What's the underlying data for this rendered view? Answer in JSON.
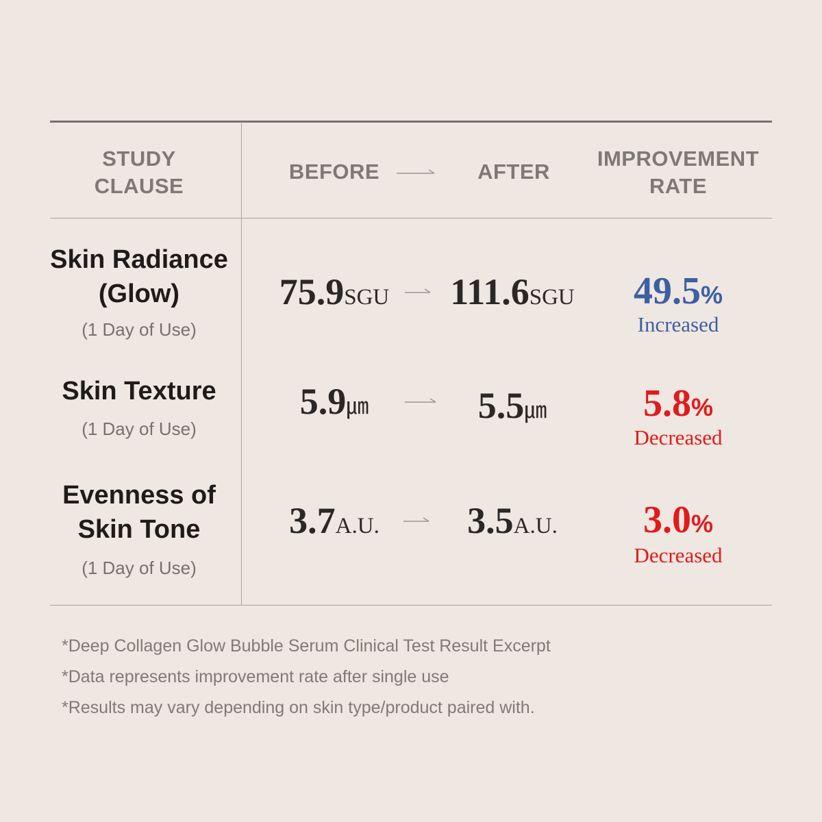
{
  "colors": {
    "background": "#efe7e1",
    "header_text": "#7d7975",
    "increase": "#3d5fa3",
    "decrease": "#e01b1b"
  },
  "header": {
    "study_clause_line1": "STUDY",
    "study_clause_line2": "CLAUSE",
    "before": "BEFORE",
    "after": "AFTER",
    "rate_line1": "IMPROVEMENT",
    "rate_line2": "RATE",
    "arrow_icon": "right-arrow-icon"
  },
  "rows": [
    {
      "clause_line1": "Skin Radiance",
      "clause_line2": "(Glow)",
      "period": "(1 Day of Use)",
      "before_value": "75.9",
      "before_unit": "SGU",
      "after_value": "111.6",
      "after_unit": "SGU",
      "rate_value": "49.5",
      "rate_unit": "%",
      "rate_label": "Increased"
    },
    {
      "clause_line1": "Skin Texture",
      "period": "(1 Day of Use)",
      "before_value": "5.9",
      "before_unit": "㎛",
      "after_value": "5.5",
      "after_unit": "㎛",
      "rate_value": "5.8",
      "rate_unit": "%",
      "rate_label": "Decreased"
    },
    {
      "clause_line1": "Evenness of",
      "clause_line2": "Skin Tone",
      "period": "(1 Day of Use)",
      "before_value": "3.7",
      "before_unit": "A.U.",
      "after_value": "3.5",
      "after_unit": "A.U.",
      "rate_value": "3.0",
      "rate_unit": "%",
      "rate_label": "Decreased"
    }
  ],
  "notes": [
    "*Deep Collagen Glow Bubble Serum Clinical Test Result Excerpt",
    "*Data represents improvement rate after single use",
    "*Results may vary depending on skin type/product paired with."
  ]
}
